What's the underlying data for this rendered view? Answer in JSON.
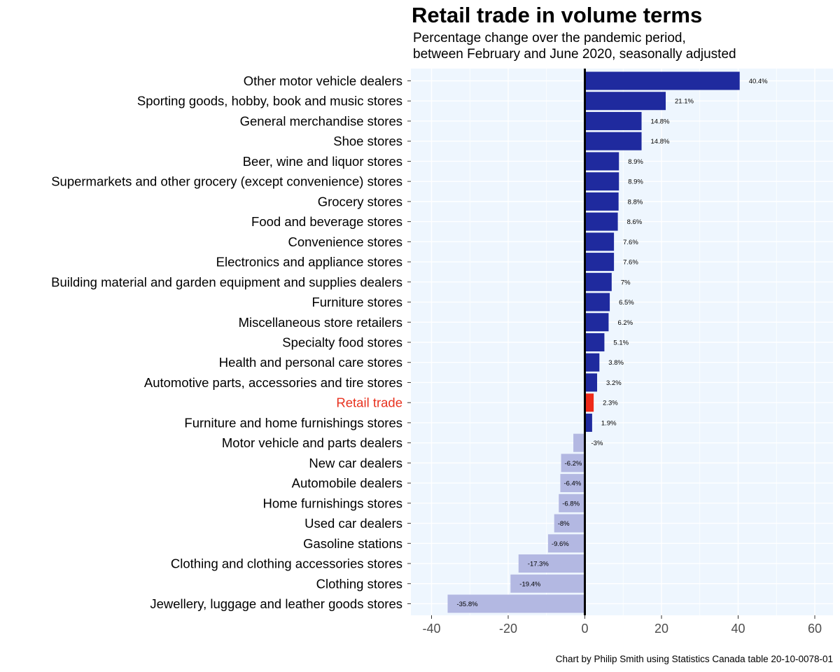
{
  "chart_data": {
    "type": "bar",
    "orientation": "horizontal",
    "title": "Retail trade in volume terms",
    "subtitle": [
      "Percentage change over the pandemic period,",
      "between February and June 2020, seasonally adjusted"
    ],
    "xlabel": "",
    "ylabel": "",
    "xlim": [
      -45,
      65
    ],
    "xticks": [
      -40,
      -20,
      0,
      20,
      40,
      60
    ],
    "grid": true,
    "categories": [
      "Other motor vehicle dealers",
      "Sporting goods, hobby, book and music stores",
      "General merchandise stores",
      "Shoe stores",
      "Beer, wine and liquor stores",
      "Supermarkets and other grocery (except convenience) stores",
      "Grocery stores",
      "Food and beverage stores",
      "Convenience stores",
      "Electronics and appliance stores",
      "Building material and garden equipment and supplies dealers",
      "Furniture stores",
      "Miscellaneous store retailers",
      "Specialty food stores",
      "Health and personal care stores",
      "Automotive parts, accessories and tire stores",
      "Retail trade",
      "Furniture and home furnishings stores",
      "Motor vehicle and parts dealers",
      "New car dealers",
      "Automobile dealers",
      "Home furnishings stores",
      "Used car dealers",
      "Gasoline stations",
      "Clothing and clothing accessories stores",
      "Clothing stores",
      "Jewellery, luggage and leather goods stores"
    ],
    "values": [
      40.4,
      21.1,
      14.8,
      14.8,
      8.9,
      8.9,
      8.8,
      8.6,
      7.6,
      7.6,
      7,
      6.5,
      6.2,
      5.1,
      3.8,
      3.2,
      2.3,
      1.9,
      -3,
      -6.2,
      -6.4,
      -6.8,
      -8,
      -9.6,
      -17.3,
      -19.4,
      -35.8
    ],
    "value_labels": [
      "40.4%",
      "21.1%",
      "14.8%",
      "14.8%",
      "8.9%",
      "8.9%",
      "8.8%",
      "8.6%",
      "7.6%",
      "7.6%",
      "7%",
      "6.5%",
      "6.2%",
      "5.1%",
      "3.8%",
      "3.2%",
      "2.3%",
      "1.9%",
      "-3%",
      "-6.2%",
      "-6.4%",
      "-6.8%",
      "-8%",
      "-9.6%",
      "-17.3%",
      "-19.4%",
      "-35.8%"
    ],
    "highlight_category": "Retail trade",
    "colors": {
      "positive": "#1f2a9e",
      "negative": "#b3b8e2",
      "highlight": "#ee2a18",
      "highlight_label": "#e8321f",
      "panel_background": "#eef6fe",
      "grid": "#ffffff",
      "zero_line": "#000000"
    }
  },
  "caption": "Chart by Philip Smith using Statistics Canada table  20-10-0078-01"
}
